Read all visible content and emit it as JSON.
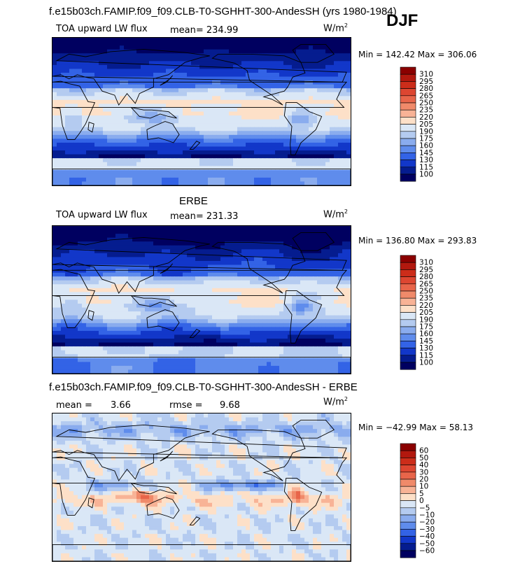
{
  "header": {
    "title": "f.e15b03ch.FAMIP.f09_f09.CLB-T0-SGHHT-300-AndesSH (yrs 1980-1984)",
    "season": "DJF"
  },
  "panels": [
    {
      "variable": "TOA upward LW flux",
      "mean_text": "mean= 234.99",
      "units_base": "W/m",
      "units_exp": "2",
      "minmax_text": "Min = 142.42 Max = 306.06"
    },
    {
      "title": "ERBE",
      "variable": "TOA upward LW flux",
      "mean_text": "mean= 231.33",
      "units_base": "W/m",
      "units_exp": "2",
      "minmax_text": "Min = 136.80 Max = 293.83"
    },
    {
      "title": "f.e15b03ch.FAMIP.f09_f09.CLB-T0-SGHHT-300-AndesSH - ERBE",
      "mean_label": "mean =",
      "mean_value": "3.66",
      "rmse_label": "rmse =",
      "rmse_value": "9.68",
      "units_base": "W/m",
      "units_exp": "2",
      "minmax_text": "Min = −42.99 Max = 58.13"
    }
  ],
  "chart_data": [
    {
      "type": "heatmap",
      "title": "TOA upward LW flux",
      "projection": "cylindrical-equidistant",
      "mean": 234.99,
      "min": 142.42,
      "max": 306.06,
      "units": "W/m2",
      "colorbar_levels": [
        "310",
        "295",
        "280",
        "265",
        "250",
        "235",
        "220",
        "205",
        "190",
        "175",
        "160",
        "145",
        "130",
        "115",
        "100"
      ],
      "colorbar_colors": [
        "#8b0000",
        "#b2180e",
        "#cc2d1a",
        "#dd4631",
        "#e8654a",
        "#f08a6a",
        "#f8b396",
        "#fde0c8",
        "#dae7f6",
        "#b4cbf0",
        "#8aacee",
        "#5f8cec",
        "#3363e6",
        "#1237c9",
        "#051c8f",
        "#000060"
      ]
    },
    {
      "type": "heatmap",
      "title": "ERBE",
      "projection": "cylindrical-equidistant",
      "mean": 231.33,
      "min": 136.8,
      "max": 293.83,
      "units": "W/m2",
      "colorbar_levels": [
        "310",
        "295",
        "280",
        "265",
        "250",
        "235",
        "220",
        "205",
        "190",
        "175",
        "160",
        "145",
        "130",
        "115",
        "100"
      ],
      "colorbar_colors": [
        "#8b0000",
        "#b2180e",
        "#cc2d1a",
        "#dd4631",
        "#e8654a",
        "#f08a6a",
        "#f8b396",
        "#fde0c8",
        "#dae7f6",
        "#b4cbf0",
        "#8aacee",
        "#5f8cec",
        "#3363e6",
        "#1237c9",
        "#051c8f",
        "#000060"
      ]
    },
    {
      "type": "heatmap",
      "title": "f.e15b03ch.FAMIP.f09_f09.CLB-T0-SGHHT-300-AndesSH - ERBE",
      "projection": "cylindrical-equidistant",
      "mean": 3.66,
      "rmse": 9.68,
      "min": -42.99,
      "max": 58.13,
      "units": "W/m2",
      "colorbar_levels": [
        "60",
        "50",
        "40",
        "30",
        "20",
        "10",
        "5",
        "0",
        "−5",
        "−10",
        "−20",
        "−30",
        "−40",
        "−50",
        "−60"
      ],
      "colorbar_colors": [
        "#8b0000",
        "#b2180e",
        "#cc2d1a",
        "#dd4631",
        "#e8654a",
        "#f08a6a",
        "#f8b396",
        "#fde0c8",
        "#dae7f6",
        "#b4cbf0",
        "#8aacee",
        "#5f8cec",
        "#3363e6",
        "#1237c9",
        "#051c8f",
        "#000060"
      ]
    }
  ]
}
